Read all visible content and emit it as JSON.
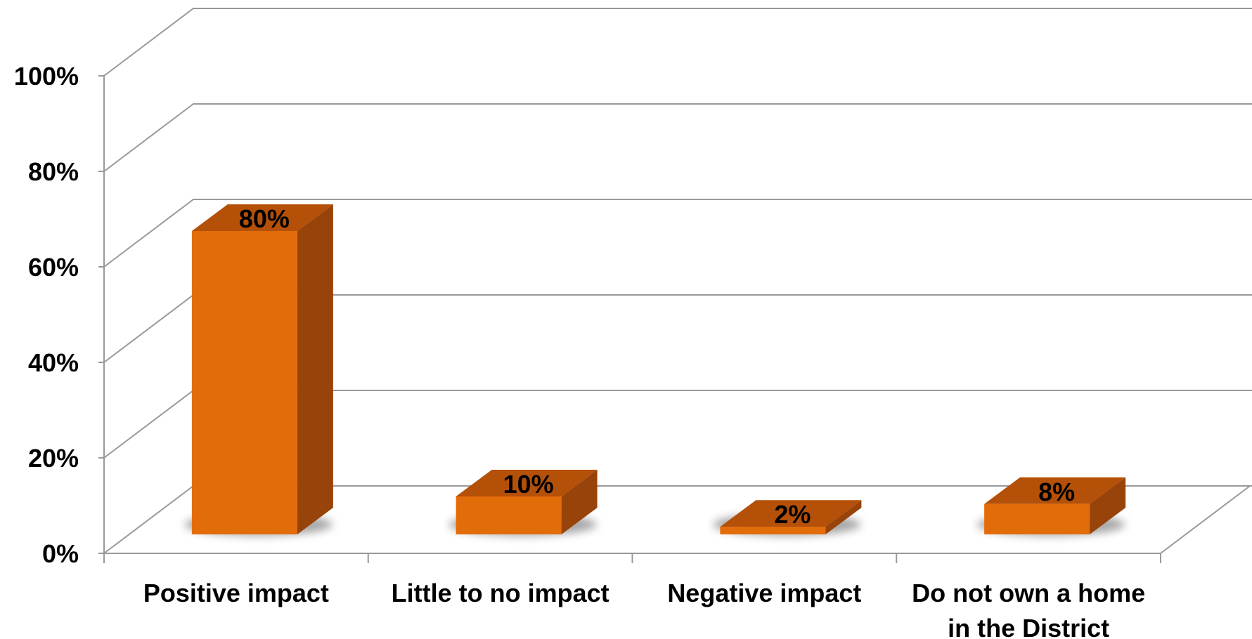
{
  "chart_data": {
    "type": "bar",
    "style": "3d-column",
    "categories": [
      [
        "Positive impact"
      ],
      [
        "Little to no impact"
      ],
      [
        "Negative impact"
      ],
      [
        "Do not own a home",
        "in the District"
      ]
    ],
    "values": [
      80,
      10,
      2,
      8
    ],
    "data_labels": [
      "80%",
      "10%",
      "2%",
      "8%"
    ],
    "yticks": [
      "0%",
      "20%",
      "40%",
      "60%",
      "80%",
      "100%"
    ],
    "ylim": [
      0,
      100
    ],
    "grid": true,
    "legend": "none",
    "title": "",
    "xlabel": "",
    "ylabel": "",
    "colors": {
      "bar_front": "#E36C0A",
      "bar_top": "#B45008",
      "bar_side": "#97430A",
      "grid": "#999999"
    }
  }
}
